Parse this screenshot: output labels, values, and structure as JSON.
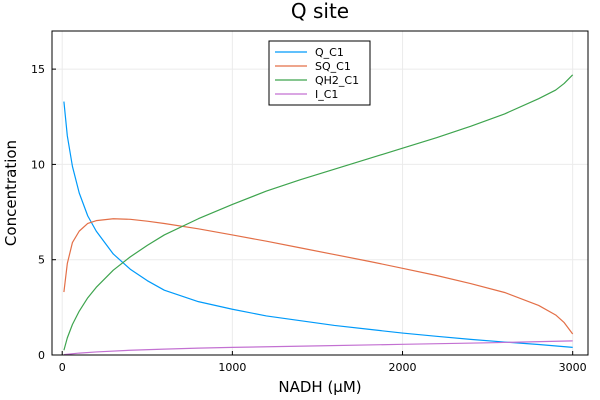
{
  "chart_data": {
    "type": "line",
    "title": "Q site",
    "xlabel": "NADH (μM)",
    "ylabel": "Concentration",
    "xlim": [
      -60,
      3090
    ],
    "ylim": [
      0,
      17
    ],
    "xticks": [
      0,
      1000,
      2000,
      3000
    ],
    "yticks": [
      0,
      5,
      10,
      15
    ],
    "grid": true,
    "legend_position": "top-center",
    "series": [
      {
        "name": "Q_C1",
        "color": "#009AFA",
        "x": [
          10,
          30,
          60,
          100,
          150,
          200,
          300,
          400,
          500,
          600,
          800,
          1000,
          1200,
          1400,
          1600,
          1800,
          2000,
          2200,
          2400,
          2600,
          2800,
          3000
        ],
        "y": [
          13.3,
          11.5,
          9.9,
          8.5,
          7.3,
          6.5,
          5.3,
          4.5,
          3.9,
          3.4,
          2.8,
          2.4,
          2.05,
          1.8,
          1.55,
          1.35,
          1.15,
          0.98,
          0.82,
          0.68,
          0.55,
          0.4
        ]
      },
      {
        "name": "SQ_C1",
        "color": "#E36F47",
        "x": [
          10,
          30,
          60,
          100,
          150,
          200,
          300,
          400,
          500,
          600,
          800,
          1000,
          1200,
          1400,
          1600,
          1800,
          2000,
          2200,
          2400,
          2600,
          2800,
          2900,
          2950,
          3000
        ],
        "y": [
          3.3,
          4.8,
          5.9,
          6.5,
          6.9,
          7.05,
          7.15,
          7.12,
          7.02,
          6.9,
          6.62,
          6.3,
          5.97,
          5.62,
          5.27,
          4.92,
          4.55,
          4.17,
          3.75,
          3.28,
          2.6,
          2.1,
          1.7,
          1.1
        ]
      },
      {
        "name": "QH2_C1",
        "color": "#3EA44E",
        "x": [
          10,
          30,
          60,
          100,
          150,
          200,
          300,
          400,
          500,
          600,
          800,
          1000,
          1200,
          1400,
          1600,
          1800,
          2000,
          2200,
          2400,
          2600,
          2800,
          2900,
          2950,
          3000
        ],
        "y": [
          0.25,
          0.9,
          1.6,
          2.3,
          3.0,
          3.55,
          4.45,
          5.15,
          5.75,
          6.3,
          7.15,
          7.9,
          8.6,
          9.2,
          9.75,
          10.3,
          10.85,
          11.4,
          12.0,
          12.65,
          13.45,
          13.9,
          14.25,
          14.7
        ]
      },
      {
        "name": "I_C1",
        "color": "#C371D2",
        "x": [
          10,
          100,
          200,
          400,
          600,
          800,
          1000,
          1500,
          2000,
          2500,
          3000
        ],
        "y": [
          0.02,
          0.1,
          0.16,
          0.25,
          0.31,
          0.36,
          0.4,
          0.48,
          0.56,
          0.64,
          0.74
        ]
      }
    ]
  }
}
